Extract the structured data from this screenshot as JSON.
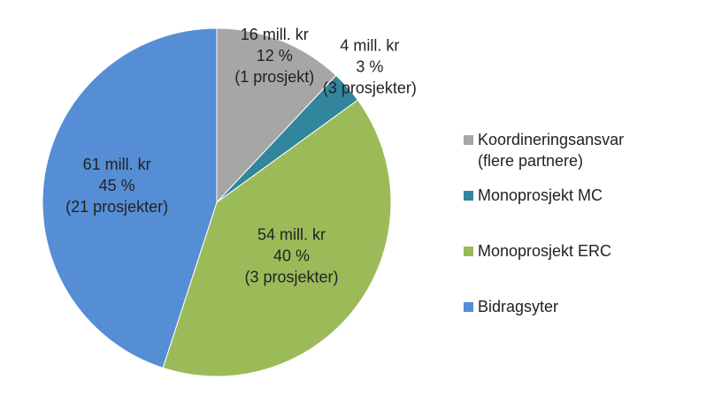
{
  "chart_data": {
    "type": "pie",
    "categories": [
      "Koordineringsansvar (flere partnere)",
      "Monoprosjekt MC",
      "Monoprosjekt ERC",
      "Bidragsyter"
    ],
    "values": [
      12,
      3,
      40,
      45
    ],
    "value_labels": [
      "12 %",
      "3 %",
      "40 %",
      "45 %"
    ],
    "amount_labels": [
      "16 mill. kr",
      "4 mill. kr",
      "54 mill. kr",
      "61 mill. kr"
    ],
    "project_labels": [
      "(1 prosjekt)",
      "(3 prosjekter)",
      "(3 prosjekter)",
      "(21 prosjekter)"
    ],
    "colors": [
      "#a6a6a6",
      "#31859c",
      "#9bbb59",
      "#558ed5"
    ]
  }
}
